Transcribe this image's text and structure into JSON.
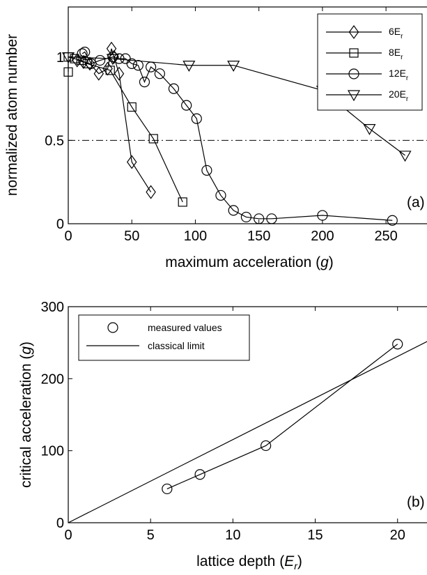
{
  "chart_data": [
    {
      "type": "line",
      "panel_label": "(a)",
      "xlabel": "maximum acceleration",
      "xunit": "g",
      "ylabel": "normalized atom number",
      "xlim": [
        0,
        285
      ],
      "ylim": [
        0,
        1.3
      ],
      "xticks": [
        "0",
        "50",
        "100",
        "150",
        "200",
        "250"
      ],
      "xtick_values": [
        0,
        50,
        100,
        150,
        200,
        250
      ],
      "yticks": [
        "0",
        "0.5",
        "1"
      ],
      "ytick_values": [
        0,
        0.5,
        1
      ],
      "reference_line": {
        "y": 0.5,
        "style": "dash-dot"
      },
      "legend_position": "top-right",
      "series": [
        {
          "name": "6E",
          "subscript": "r",
          "marker": "diamond",
          "x": [
            7,
            12,
            17,
            24,
            31,
            34,
            36,
            40,
            50,
            65
          ],
          "y": [
            0.98,
            0.97,
            0.96,
            0.9,
            0.93,
            1.05,
            1.0,
            0.9,
            0.37,
            0.19
          ]
        },
        {
          "name": "8E",
          "subscript": "r",
          "marker": "square",
          "x": [
            0,
            0,
            5,
            10,
            15,
            33,
            50,
            67,
            90
          ],
          "y": [
            0.91,
            1.0,
            0.99,
            0.98,
            0.96,
            0.92,
            0.7,
            0.51,
            0.13
          ]
        },
        {
          "name": "12E",
          "subscript": "r",
          "marker": "circle",
          "x": [
            11,
            13,
            18,
            25,
            35,
            40,
            45,
            50,
            55,
            60,
            65,
            72,
            83,
            93,
            101,
            109,
            120,
            130,
            140,
            150,
            160,
            200,
            255
          ],
          "y": [
            1.02,
            1.03,
            0.96,
            0.98,
            1.0,
            0.99,
            0.99,
            0.96,
            0.95,
            0.85,
            0.94,
            0.9,
            0.81,
            0.71,
            0.63,
            0.32,
            0.17,
            0.08,
            0.04,
            0.03,
            0.03,
            0.05,
            0.02
          ]
        },
        {
          "name": "20E",
          "subscript": "r",
          "marker": "triangle-down",
          "x": [
            0,
            35,
            95,
            130,
            200,
            237,
            265
          ],
          "y": [
            1.0,
            0.99,
            0.95,
            0.95,
            0.8,
            0.57,
            0.41
          ]
        }
      ]
    },
    {
      "type": "scatter",
      "panel_label": "(b)",
      "xlabel": "lattice depth",
      "xunit": "E",
      "xunit_sub": "r",
      "ylabel": "critical acceleration",
      "yunit": "g",
      "xlim": [
        0,
        22
      ],
      "ylim": [
        0,
        300
      ],
      "xticks": [
        "0",
        "5",
        "10",
        "15",
        "20"
      ],
      "xtick_values": [
        0,
        5,
        10,
        15,
        20
      ],
      "yticks": [
        "0",
        "100",
        "200",
        "300"
      ],
      "ytick_values": [
        0,
        100,
        200,
        300
      ],
      "legend_position": "top-left",
      "series": [
        {
          "name": "measured values",
          "marker": "circle",
          "x": [
            6,
            8,
            12,
            20
          ],
          "y": [
            47,
            67,
            107,
            248
          ]
        },
        {
          "name": "classical limit",
          "marker": "none",
          "x": [
            0,
            22
          ],
          "y": [
            0,
            254
          ]
        }
      ]
    }
  ]
}
